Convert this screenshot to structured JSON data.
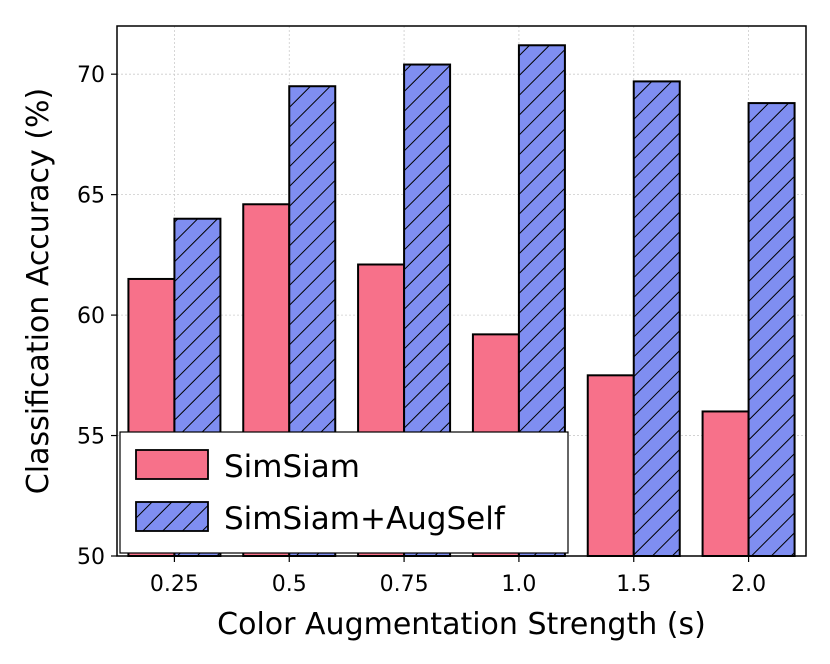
{
  "chart_data": {
    "type": "bar",
    "xlabel": "Color Augmentation Strength (s)",
    "ylabel": "Classification Accuracy (%)",
    "categories": [
      "0.25",
      "0.5",
      "0.75",
      "1.0",
      "1.5",
      "2.0"
    ],
    "ylim": [
      50,
      72
    ],
    "yticks": [
      50,
      55,
      60,
      65,
      70
    ],
    "grid": true,
    "legend_position": "bottom-left",
    "series": [
      {
        "name": "SimSiam",
        "values": [
          61.5,
          64.6,
          62.1,
          59.2,
          57.5,
          56.0
        ],
        "color": "#f7718a",
        "pattern": "solid"
      },
      {
        "name": "SimSiam+AugSelf",
        "values": [
          64.0,
          69.5,
          70.4,
          71.2,
          69.7,
          68.8
        ],
        "color": "#7f8ef1",
        "pattern": "hatched"
      }
    ]
  }
}
